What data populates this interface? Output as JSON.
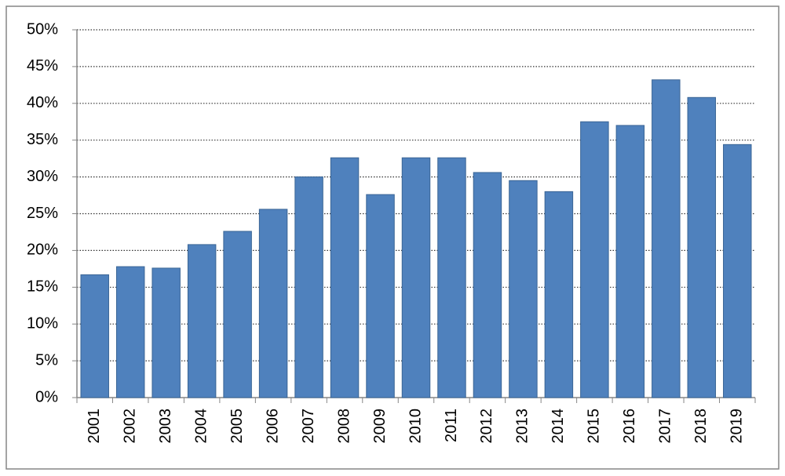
{
  "chart_data": {
    "type": "bar",
    "categories": [
      "2001",
      "2002",
      "2003",
      "2004",
      "2005",
      "2006",
      "2007",
      "2008",
      "2009",
      "2010",
      "2011",
      "2012",
      "2013",
      "2014",
      "2015",
      "2016",
      "2017",
      "2018",
      "2019"
    ],
    "values": [
      16.7,
      17.8,
      17.6,
      20.8,
      22.6,
      25.6,
      30.0,
      32.6,
      27.6,
      32.6,
      32.6,
      30.6,
      29.5,
      28.0,
      37.5,
      37.0,
      43.2,
      40.8,
      34.4
    ],
    "color": "#4f81bd",
    "ylim": [
      0,
      50
    ],
    "yticks": [
      {
        "value": 0,
        "label": "0%"
      },
      {
        "value": 5,
        "label": "5%"
      },
      {
        "value": 10,
        "label": "10%"
      },
      {
        "value": 15,
        "label": "15%"
      },
      {
        "value": 20,
        "label": "20%"
      },
      {
        "value": 25,
        "label": "25%"
      },
      {
        "value": 30,
        "label": "30%"
      },
      {
        "value": 35,
        "label": "35%"
      },
      {
        "value": 40,
        "label": "40%"
      },
      {
        "value": 45,
        "label": "45%"
      },
      {
        "value": 50,
        "label": "50%"
      }
    ],
    "grid": true
  }
}
